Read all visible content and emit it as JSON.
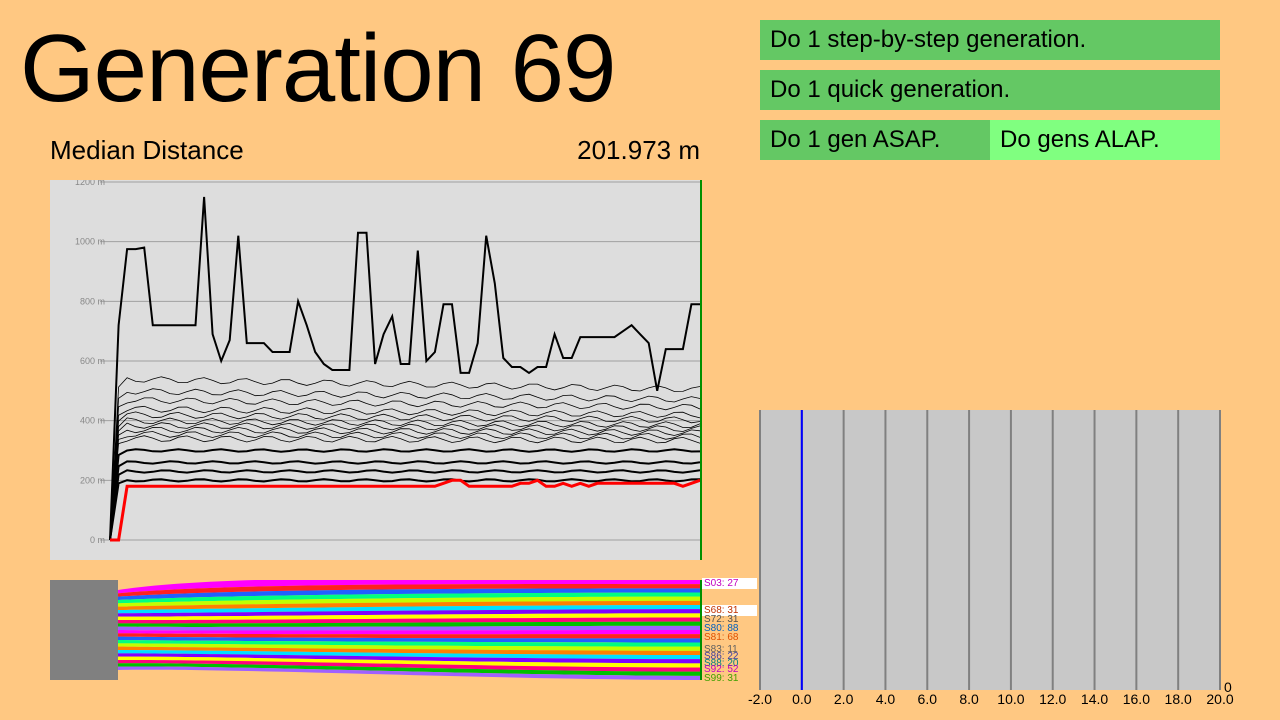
{
  "title": "Generation 69",
  "metric": {
    "label": "Median Distance",
    "value": "201.973 m"
  },
  "buttons": {
    "step": "Do 1 step-by-step generation.",
    "quick": "Do 1 quick generation.",
    "asap": "Do 1 gen ASAP.",
    "alap": "Do gens ALAP."
  },
  "graph": {
    "y_ticks": [
      "1200 m",
      "1000 m",
      "800 m",
      "600 m",
      "400 m",
      "200 m",
      "0 m"
    ],
    "generations": 69,
    "colors": {
      "background": "#DDDDDD",
      "grid": "#A0A0A0",
      "median": "#FF0000",
      "top": "#000000",
      "cursor": "#009000"
    }
  },
  "species_labels": [
    {
      "text": "S03: 27",
      "color": "#C000C0"
    },
    {
      "text": "S68: 31",
      "color": "#C03000"
    },
    {
      "text": "S72: 31",
      "color": "#505050"
    },
    {
      "text": "S80: 88",
      "color": "#0060C0"
    },
    {
      "text": "S81: 68",
      "color": "#E05000"
    },
    {
      "text": "S83: 11",
      "color": "#606060"
    },
    {
      "text": "S86: 22",
      "color": "#4040A0"
    },
    {
      "text": "S88: 20",
      "color": "#008080"
    },
    {
      "text": "S92: 52",
      "color": "#C000C0"
    },
    {
      "text": "S99: 31",
      "color": "#40A000"
    }
  ],
  "histogram": {
    "x_ticks": [
      "-2.0",
      "0.0",
      "2.0",
      "4.0",
      "6.0",
      "8.0",
      "10.0",
      "12.0",
      "14.0",
      "16.0",
      "18.0",
      "20.0"
    ],
    "y_label": "0",
    "marker_value": 0.0,
    "colors": {
      "background": "#C8C8C8",
      "lines": "#808080",
      "marker": "#0000FF"
    }
  },
  "chart_data": [
    {
      "type": "line",
      "title": "Median Distance",
      "ylim": [
        0,
        1200
      ],
      "y_ticks": [
        "1200 m",
        "1000 m",
        "800 m",
        "600 m",
        "400 m",
        "200 m",
        "0 m"
      ],
      "x": [
        0,
        1,
        2,
        3,
        4,
        5,
        6,
        7,
        8,
        9,
        10,
        11,
        12,
        13,
        14,
        15,
        16,
        17,
        18,
        19,
        20,
        21,
        22,
        23,
        24,
        25,
        26,
        27,
        28,
        29,
        30,
        31,
        32,
        33,
        34,
        35,
        36,
        37,
        38,
        39,
        40,
        41,
        42,
        43,
        44,
        45,
        46,
        47,
        48,
        49,
        50,
        51,
        52,
        53,
        54,
        55,
        56,
        57,
        58,
        59,
        60,
        61,
        62,
        63,
        64,
        65,
        66,
        67,
        68,
        69
      ],
      "series": [
        {
          "name": "",
          "values": [
            0,
            720,
            975,
            975,
            980,
            720,
            720,
            720,
            720,
            720,
            720,
            1150,
            690,
            600,
            670,
            1020,
            660,
            660,
            660,
            630,
            630,
            630,
            800,
            720,
            630,
            590,
            570,
            570,
            570,
            1030,
            1030,
            590,
            690,
            750,
            590,
            590,
            970,
            600,
            630,
            790,
            790,
            560,
            560,
            660,
            1020,
            860,
            610,
            580,
            580,
            560,
            580,
            580,
            690,
            610,
            610,
            680,
            680,
            680,
            680,
            680,
            700,
            720,
            690,
            660,
            500,
            640,
            640,
            640,
            790,
            790
          ]
        },
        {
          "name": "",
          "values": [
            0,
            0,
            180,
            180,
            180,
            180,
            180,
            180,
            180,
            180,
            180,
            180,
            180,
            180,
            180,
            180,
            180,
            180,
            180,
            180,
            180,
            180,
            180,
            180,
            180,
            180,
            180,
            180,
            180,
            180,
            180,
            180,
            180,
            180,
            180,
            180,
            180,
            180,
            180,
            190,
            200,
            200,
            180,
            180,
            180,
            180,
            180,
            180,
            190,
            190,
            200,
            180,
            180,
            190,
            180,
            190,
            180,
            190,
            190,
            190,
            190,
            190,
            190,
            190,
            190,
            190,
            190,
            180,
            190,
            200
          ]
        }
      ]
    },
    {
      "type": "bar",
      "x_ticks": [
        "-2.0",
        "0.0",
        "2.0",
        "4.0",
        "6.0",
        "8.0",
        "10.0",
        "12.0",
        "14.0",
        "16.0",
        "18.0",
        "20.0"
      ],
      "xlim": [
        -2,
        20
      ],
      "y_label": "0",
      "marker_x": 0.0
    }
  ]
}
